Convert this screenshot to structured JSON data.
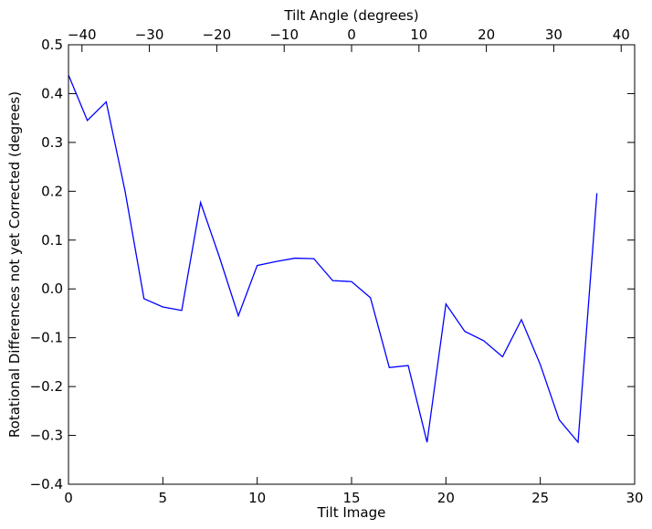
{
  "chart_data": {
    "type": "line",
    "title": "",
    "xlabel": "Tilt Image",
    "ylabel": "Rotational Differences not yet Corrected (degrees)",
    "x2label": "Tilt Angle (degrees)",
    "xlim": [
      0,
      30
    ],
    "ylim": [
      -0.4,
      0.5
    ],
    "x2lim": [
      -42,
      42
    ],
    "grid": false,
    "xticks": [
      0,
      5,
      10,
      15,
      20,
      25,
      30
    ],
    "xtick_labels": [
      "0",
      "5",
      "10",
      "15",
      "20",
      "25",
      "30"
    ],
    "yticks": [
      -0.4,
      -0.3,
      -0.2,
      -0.1,
      0.0,
      0.1,
      0.2,
      0.3,
      0.4,
      0.5
    ],
    "ytick_labels": [
      "−0.4",
      "−0.3",
      "−0.2",
      "−0.1",
      "0.0",
      "0.1",
      "0.2",
      "0.3",
      "0.4",
      "0.5"
    ],
    "x2ticks": [
      -40,
      -30,
      -20,
      -10,
      0,
      10,
      20,
      30,
      40
    ],
    "x2tick_labels": [
      "−40",
      "−30",
      "−20",
      "−10",
      "0",
      "10",
      "20",
      "30",
      "40"
    ],
    "series": [
      {
        "color": "#0000ff",
        "x": [
          0,
          1,
          2,
          3,
          4,
          5,
          6,
          7,
          8,
          9,
          10,
          11,
          12,
          13,
          14,
          15,
          16,
          17,
          18,
          19,
          20,
          21,
          22,
          23,
          24,
          25,
          26,
          27,
          28
        ],
        "y": [
          0.438,
          0.345,
          0.383,
          0.2,
          -0.02,
          -0.037,
          -0.044,
          0.177,
          0.065,
          -0.055,
          0.048,
          0.056,
          0.063,
          0.062,
          0.017,
          0.015,
          -0.018,
          -0.161,
          -0.157,
          -0.314,
          -0.031,
          -0.087,
          -0.106,
          -0.139,
          -0.063,
          -0.155,
          -0.268,
          -0.314,
          0.196
        ]
      }
    ]
  }
}
